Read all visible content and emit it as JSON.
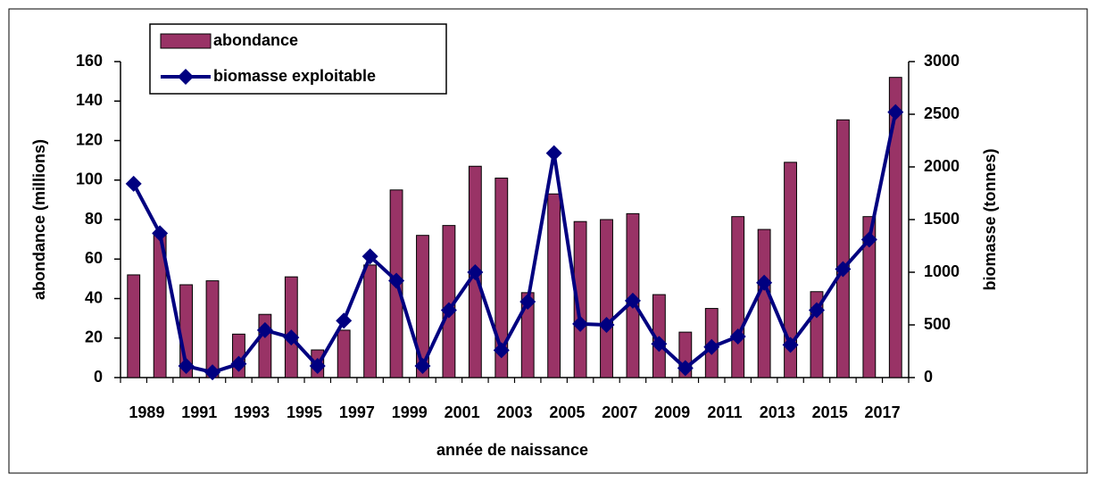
{
  "chart_data": {
    "type": "bar",
    "xlabel": "année de naissance",
    "ylabel": "abondance (millions)",
    "y2label": "biomasse (tonnes)",
    "categories": [
      "1989",
      null,
      "1991",
      null,
      "1993",
      null,
      "1995",
      null,
      "1997",
      null,
      "1999",
      null,
      "2001",
      null,
      "2003",
      null,
      "2005",
      null,
      "2007",
      null,
      "2009",
      null,
      "2011",
      null,
      "2013",
      null,
      "2015",
      null,
      "2017",
      null
    ],
    "series": [
      {
        "name": "abondance",
        "type": "bar",
        "axis": "y",
        "color": "#993366",
        "values": [
          52,
          73,
          47,
          49,
          22,
          32,
          51,
          14,
          24,
          57,
          95,
          72,
          77,
          107,
          101,
          43,
          93,
          79,
          80,
          83,
          42,
          23,
          35,
          81.5,
          75,
          109,
          43.5,
          130.5,
          81.5,
          152
        ]
      },
      {
        "name": "biomasse exploitable",
        "type": "line",
        "axis": "y2",
        "color": "#000080",
        "values": [
          1840,
          1370,
          110,
          50,
          130,
          450,
          380,
          110,
          540,
          1150,
          920,
          110,
          640,
          1000,
          260,
          720,
          2130,
          510,
          500,
          730,
          320,
          90,
          290,
          390,
          900,
          310,
          640,
          1030,
          1310,
          2520
        ]
      }
    ],
    "ylim": [
      0,
      160
    ],
    "yticks": [
      0,
      20,
      40,
      60,
      80,
      100,
      120,
      140,
      160
    ],
    "y2lim": [
      0,
      3000
    ],
    "y2ticks": [
      0,
      500,
      1000,
      1500,
      2000,
      2500,
      3000
    ],
    "legend": "upper left",
    "grid": false
  }
}
